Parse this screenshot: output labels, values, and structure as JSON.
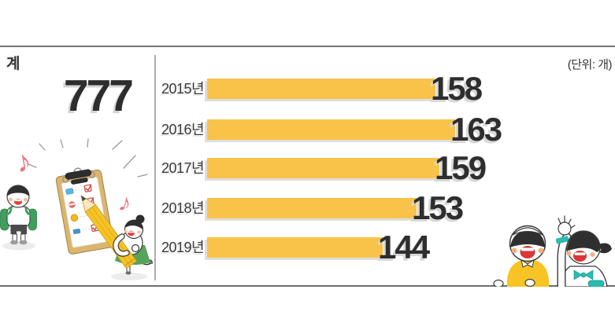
{
  "header": {
    "total_label": "계",
    "total_value": "777",
    "unit_label": "(단위: 개)"
  },
  "chart_data": {
    "type": "bar",
    "orientation": "horizontal",
    "categories": [
      "2015년",
      "2016년",
      "2017년",
      "2018년",
      "2019년"
    ],
    "values": [
      158,
      163,
      159,
      153,
      144
    ],
    "total": 777,
    "unit": "개",
    "bar_color": "#F9C34A",
    "value_text_color": "#2E2E2E",
    "label_text_color": "#3A3A3A",
    "value_labels_shown": true,
    "gridlines": false,
    "legend": false
  },
  "illustrations": {
    "left": "students-with-checklist-clipboard-and-pencil",
    "bottom_right": "two-cheering-kids-over-line"
  }
}
